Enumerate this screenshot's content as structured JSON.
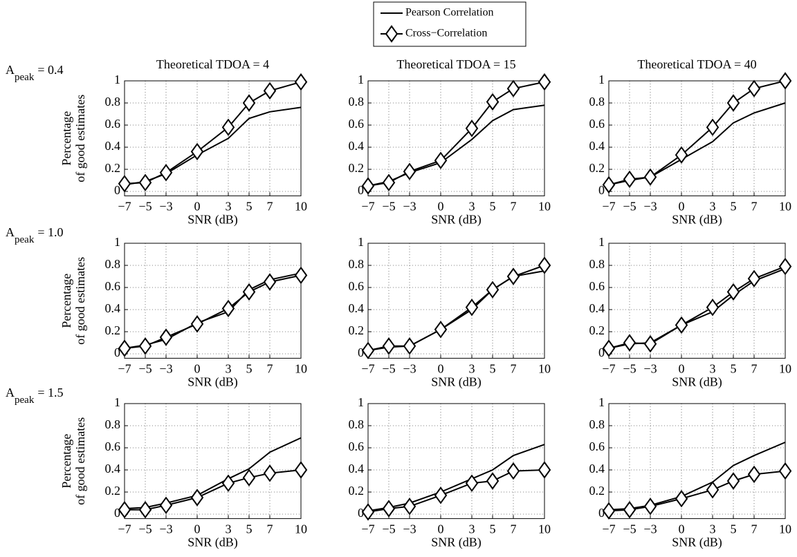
{
  "chart_data": [
    {
      "type": "line",
      "title": "Theoretical TDOA = 4",
      "row_label": {
        "main": "A",
        "sub": "peak",
        "text": "= 0.4"
      },
      "ylabel": [
        "Percentage",
        "of good estimates"
      ],
      "xlabel": "SNR (dB)",
      "legend": "top",
      "x": [
        -7,
        -5,
        -3,
        0,
        3,
        5,
        7,
        10
      ],
      "series": [
        {
          "name": "Pearson Correlation",
          "color": "#000000",
          "marker": "none",
          "values": [
            0.06,
            0.09,
            0.16,
            0.33,
            0.48,
            0.66,
            0.72,
            0.76
          ]
        },
        {
          "name": "Cross−Correlation",
          "color": "#000000",
          "marker": "diamond",
          "values": [
            0.07,
            0.08,
            0.17,
            0.36,
            0.58,
            0.8,
            0.91,
            0.99
          ]
        }
      ],
      "xlim": [
        -7,
        10
      ],
      "xticks": [
        {
          "value": -7,
          "label": "−7"
        },
        {
          "value": -5,
          "label": "−5"
        },
        {
          "value": -3,
          "label": "−3"
        },
        0,
        3,
        5,
        7,
        10
      ],
      "ylim": [
        -0.04,
        1
      ],
      "yticks": [
        0,
        0.2,
        0.4,
        0.6,
        0.8,
        1
      ],
      "grid": true
    },
    {
      "type": "line",
      "title": "Theoretical TDOA = 15",
      "xlabel": "SNR (dB)",
      "x": [
        -7,
        -5,
        -3,
        0,
        3,
        5,
        7,
        10
      ],
      "series": [
        {
          "color": "#000000",
          "marker": "none",
          "values": [
            0.05,
            0.09,
            0.17,
            0.26,
            0.47,
            0.64,
            0.74,
            0.78
          ]
        },
        {
          "color": "#000000",
          "marker": "diamond",
          "values": [
            0.05,
            0.08,
            0.18,
            0.28,
            0.57,
            0.81,
            0.93,
            0.99
          ]
        }
      ],
      "xlim": [
        -7,
        10
      ],
      "xticks": [
        {
          "value": -7,
          "label": "−7"
        },
        {
          "value": -5,
          "label": "−5"
        },
        {
          "value": -3,
          "label": "−3"
        },
        0,
        3,
        5,
        7,
        10
      ],
      "ylim": [
        -0.04,
        1
      ],
      "yticks": [
        0,
        0.2,
        0.4,
        0.6,
        0.8,
        1
      ],
      "grid": true
    },
    {
      "type": "line",
      "title": "Theoretical TDOA = 40",
      "xlabel": "SNR (dB)",
      "x": [
        -7,
        -5,
        -3,
        0,
        3,
        5,
        7,
        10
      ],
      "series": [
        {
          "color": "#000000",
          "marker": "none",
          "values": [
            0.06,
            0.1,
            0.13,
            0.29,
            0.45,
            0.62,
            0.71,
            0.8
          ]
        },
        {
          "color": "#000000",
          "marker": "diamond",
          "values": [
            0.06,
            0.11,
            0.13,
            0.33,
            0.58,
            0.8,
            0.93,
            1.0
          ]
        }
      ],
      "xlim": [
        -7,
        10
      ],
      "xticks": [
        {
          "value": -7,
          "label": "−7"
        },
        {
          "value": -5,
          "label": "−5"
        },
        {
          "value": -3,
          "label": "−3"
        },
        0,
        3,
        5,
        7,
        10
      ],
      "ylim": [
        -0.04,
        1
      ],
      "yticks": [
        0,
        0.2,
        0.4,
        0.6,
        0.8,
        1
      ],
      "grid": true
    },
    {
      "type": "line",
      "row_label": {
        "main": "A",
        "sub": "peak",
        "text": "= 1.0"
      },
      "ylabel": [
        "Percentage",
        "of good estimates"
      ],
      "xlabel": "SNR (dB)",
      "x": [
        -7,
        -5,
        -3,
        0,
        3,
        5,
        7,
        10
      ],
      "series": [
        {
          "color": "#000000",
          "marker": "none",
          "values": [
            0.05,
            0.08,
            0.13,
            0.28,
            0.38,
            0.58,
            0.67,
            0.73
          ]
        },
        {
          "color": "#000000",
          "marker": "diamond",
          "values": [
            0.05,
            0.07,
            0.15,
            0.27,
            0.41,
            0.56,
            0.65,
            0.71
          ]
        }
      ],
      "xlim": [
        -7,
        10
      ],
      "xticks": [
        {
          "value": -7,
          "label": "−7"
        },
        {
          "value": -5,
          "label": "−5"
        },
        {
          "value": -3,
          "label": "−3"
        },
        0,
        3,
        5,
        7,
        10
      ],
      "ylim": [
        -0.04,
        1
      ],
      "yticks": [
        0,
        0.2,
        0.4,
        0.6,
        0.8,
        1
      ],
      "grid": true
    },
    {
      "type": "line",
      "xlabel": "SNR (dB)",
      "x": [
        -7,
        -5,
        -3,
        0,
        3,
        5,
        7,
        10
      ],
      "series": [
        {
          "color": "#000000",
          "marker": "none",
          "values": [
            0.03,
            0.06,
            0.07,
            0.22,
            0.4,
            0.58,
            0.7,
            0.75
          ]
        },
        {
          "color": "#000000",
          "marker": "diamond",
          "values": [
            0.03,
            0.07,
            0.07,
            0.22,
            0.42,
            0.58,
            0.7,
            0.8
          ]
        }
      ],
      "xlim": [
        -7,
        10
      ],
      "xticks": [
        {
          "value": -7,
          "label": "−7"
        },
        {
          "value": -5,
          "label": "−5"
        },
        {
          "value": -3,
          "label": "−3"
        },
        0,
        3,
        5,
        7,
        10
      ],
      "ylim": [
        -0.04,
        1
      ],
      "yticks": [
        0,
        0.2,
        0.4,
        0.6,
        0.8,
        1
      ],
      "grid": true
    },
    {
      "type": "line",
      "xlabel": "SNR (dB)",
      "x": [
        -7,
        -5,
        -3,
        0,
        3,
        5,
        7,
        10
      ],
      "series": [
        {
          "color": "#000000",
          "marker": "none",
          "values": [
            0.05,
            0.09,
            0.1,
            0.26,
            0.38,
            0.53,
            0.66,
            0.77
          ]
        },
        {
          "color": "#000000",
          "marker": "diamond",
          "values": [
            0.05,
            0.1,
            0.09,
            0.26,
            0.42,
            0.56,
            0.68,
            0.79
          ]
        }
      ],
      "xlim": [
        -7,
        10
      ],
      "xticks": [
        {
          "value": -7,
          "label": "−7"
        },
        {
          "value": -5,
          "label": "−5"
        },
        {
          "value": -3,
          "label": "−3"
        },
        0,
        3,
        5,
        7,
        10
      ],
      "ylim": [
        -0.04,
        1
      ],
      "yticks": [
        0,
        0.2,
        0.4,
        0.6,
        0.8,
        1
      ],
      "grid": true
    },
    {
      "type": "line",
      "row_label": {
        "main": "A",
        "sub": "peak",
        "text": "= 1.5"
      },
      "ylabel": [
        "Percentage",
        "of good estimates"
      ],
      "xlabel": "SNR (dB)",
      "x": [
        -7,
        -5,
        -3,
        0,
        3,
        5,
        7,
        10
      ],
      "series": [
        {
          "color": "#000000",
          "marker": "none",
          "values": [
            0.05,
            0.06,
            0.1,
            0.17,
            0.32,
            0.41,
            0.56,
            0.69
          ]
        },
        {
          "color": "#000000",
          "marker": "diamond",
          "values": [
            0.04,
            0.04,
            0.08,
            0.15,
            0.28,
            0.33,
            0.37,
            0.4
          ]
        }
      ],
      "xlim": [
        -7,
        10
      ],
      "xticks": [
        {
          "value": -7,
          "label": "−7"
        },
        {
          "value": -5,
          "label": "−5"
        },
        {
          "value": -3,
          "label": "−3"
        },
        0,
        3,
        5,
        7,
        10
      ],
      "ylim": [
        -0.04,
        1
      ],
      "yticks": [
        0,
        0.2,
        0.4,
        0.6,
        0.8,
        1
      ],
      "grid": true
    },
    {
      "type": "line",
      "xlabel": "SNR (dB)",
      "x": [
        -7,
        -5,
        -3,
        0,
        3,
        5,
        7,
        10
      ],
      "series": [
        {
          "color": "#000000",
          "marker": "none",
          "values": [
            0.03,
            0.06,
            0.1,
            0.2,
            0.32,
            0.4,
            0.53,
            0.63
          ]
        },
        {
          "color": "#000000",
          "marker": "diamond",
          "values": [
            0.02,
            0.05,
            0.07,
            0.17,
            0.28,
            0.3,
            0.39,
            0.4
          ]
        }
      ],
      "xlim": [
        -7,
        10
      ],
      "xticks": [
        {
          "value": -7,
          "label": "−7"
        },
        {
          "value": -5,
          "label": "−5"
        },
        {
          "value": -3,
          "label": "−3"
        },
        0,
        3,
        5,
        7,
        10
      ],
      "ylim": [
        -0.04,
        1
      ],
      "yticks": [
        0,
        0.2,
        0.4,
        0.6,
        0.8,
        1
      ],
      "grid": true
    },
    {
      "type": "line",
      "xlabel": "SNR (dB)",
      "x": [
        -7,
        -5,
        -3,
        0,
        3,
        5,
        7,
        10
      ],
      "series": [
        {
          "color": "#000000",
          "marker": "none",
          "values": [
            0.04,
            0.05,
            0.08,
            0.16,
            0.29,
            0.44,
            0.53,
            0.65
          ]
        },
        {
          "color": "#000000",
          "marker": "diamond",
          "values": [
            0.03,
            0.04,
            0.07,
            0.14,
            0.22,
            0.3,
            0.36,
            0.39
          ]
        }
      ],
      "xlim": [
        -7,
        10
      ],
      "xticks": [
        {
          "value": -7,
          "label": "−7"
        },
        {
          "value": -5,
          "label": "−5"
        },
        {
          "value": -3,
          "label": "−3"
        },
        0,
        3,
        5,
        7,
        10
      ],
      "ylim": [
        -0.04,
        1
      ],
      "yticks": [
        0,
        0.2,
        0.4,
        0.6,
        0.8,
        1
      ],
      "grid": true
    }
  ]
}
